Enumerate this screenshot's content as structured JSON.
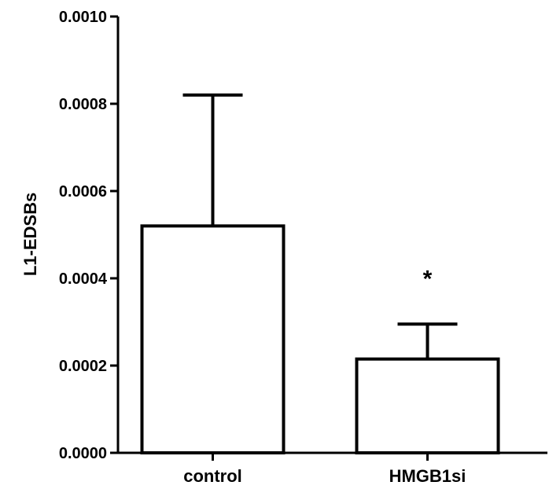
{
  "chart_data": {
    "type": "bar",
    "categories": [
      "control",
      "HMGB1si"
    ],
    "values": [
      0.00052,
      0.000215
    ],
    "error_upper": [
      0.00082,
      0.000295
    ],
    "ylabel": "L1-EDSBs",
    "xlabel": "",
    "ylim": [
      0,
      0.001
    ],
    "yticks": [
      0.0,
      0.0002,
      0.0004,
      0.0006,
      0.0008,
      0.001
    ],
    "ytick_labels": [
      "0.0000",
      "0.0002",
      "0.0004",
      "0.0006",
      "0.0008",
      "0.0010"
    ],
    "annotations": [
      {
        "category": "HMGB1si",
        "text": "*"
      }
    ],
    "bar_fill": "#ffffff",
    "bar_stroke": "#000000",
    "grid": false
  }
}
